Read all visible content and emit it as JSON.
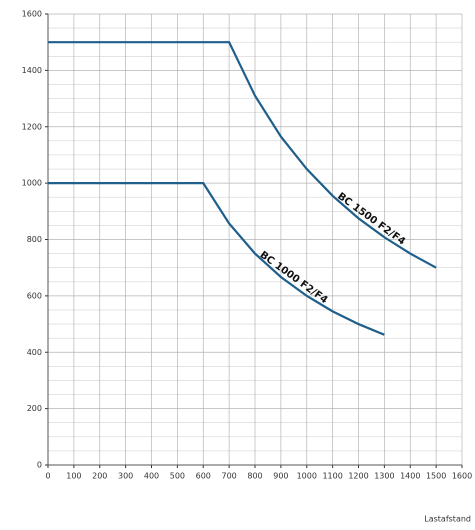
{
  "chart_data": {
    "type": "line",
    "x_label": "Lastafstand",
    "x": [
      0,
      100,
      200,
      300,
      400,
      500,
      600,
      700,
      800,
      900,
      1000,
      1100,
      1200,
      1300,
      1400,
      1500
    ],
    "series": [
      {
        "name": "BC 1500 F2/F4",
        "color": "#1f5f8b",
        "values": [
          1500,
          1500,
          1500,
          1500,
          1500,
          1500,
          1500,
          1500,
          1310,
          1165,
          1050,
          955,
          875,
          808,
          750,
          700
        ]
      },
      {
        "name": "BC 1000 F2/F4",
        "color": "#1f5f8b",
        "values": [
          1000,
          1000,
          1000,
          1000,
          1000,
          1000,
          1000,
          857,
          750,
          667,
          600,
          545,
          500,
          462,
          null,
          null
        ]
      }
    ],
    "xlim": [
      0,
      1600
    ],
    "xticks": [
      0,
      100,
      200,
      300,
      400,
      500,
      600,
      700,
      800,
      900,
      1000,
      1100,
      1200,
      1300,
      1400,
      1500,
      1600
    ],
    "ylim": [
      0,
      1600
    ],
    "yticks": [
      0,
      200,
      400,
      600,
      800,
      1000,
      1200,
      1400,
      1600
    ],
    "grid": true,
    "minor_grid": true
  }
}
